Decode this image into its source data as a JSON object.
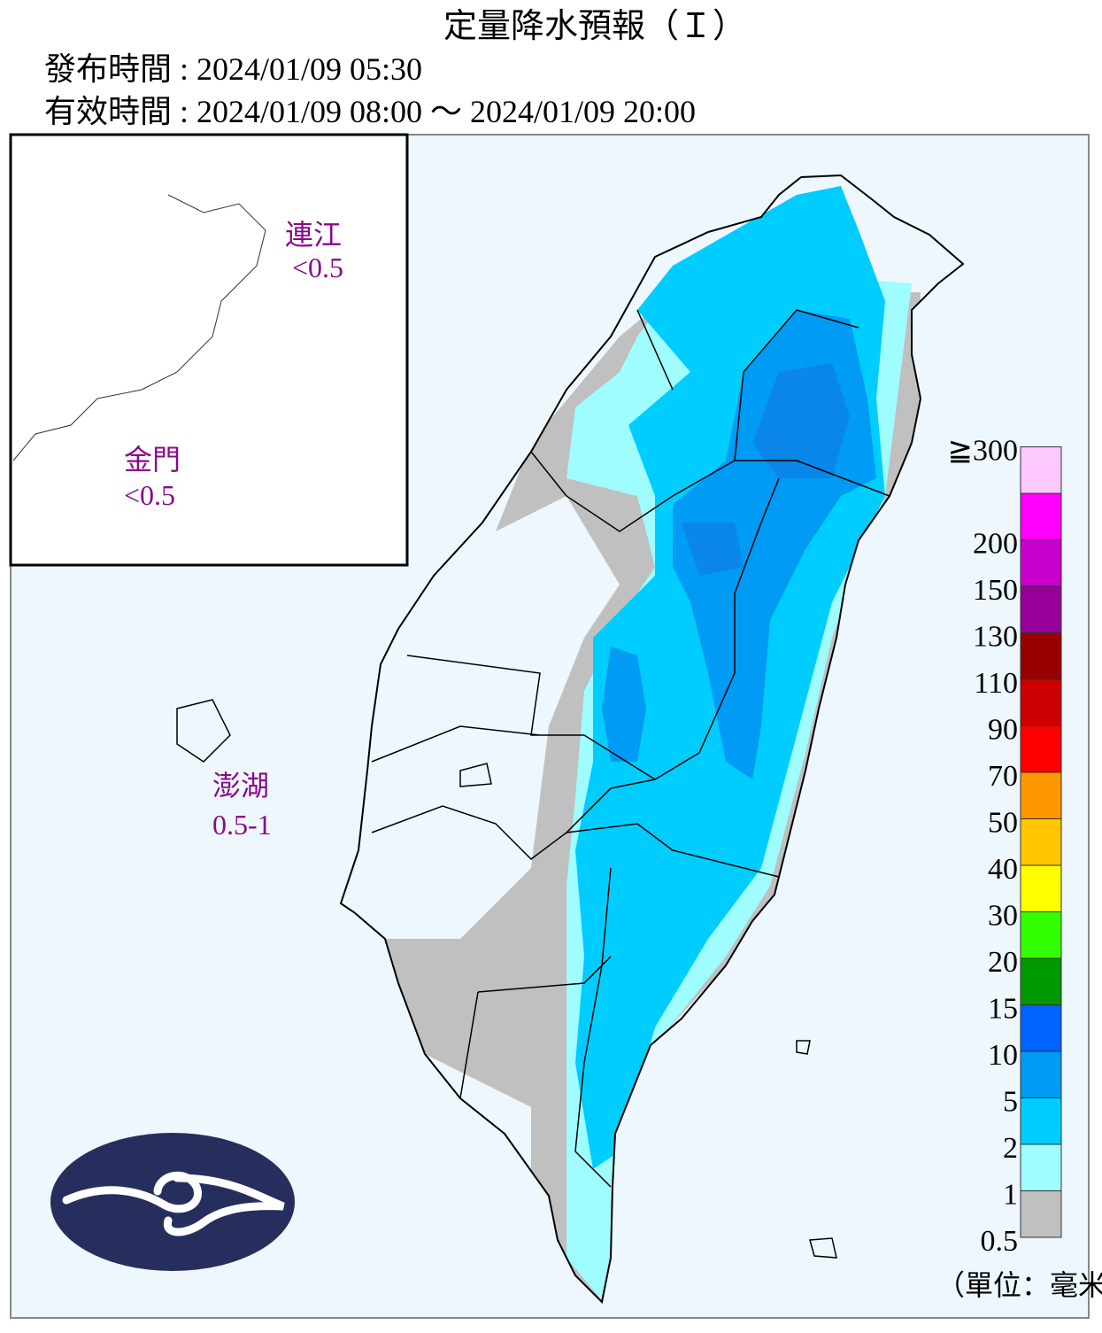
{
  "header": {
    "title": "定量降水預報（Ｉ）",
    "issue_time": "發布時間 : 2024/01/09 05:30",
    "valid_time": "有效時間 : 2024/01/09 08:00 ～ 2024/01/09 20:00"
  },
  "regions": [
    {
      "name": "連江",
      "value": "<0.5"
    },
    {
      "name": "金門",
      "value": "<0.5"
    },
    {
      "name": "澎湖",
      "value": "0.5-1"
    }
  ],
  "legend": {
    "items": [
      {
        "label": "0.5",
        "color": "#c0c0c0"
      },
      {
        "label": "1",
        "color": "#9ffcff"
      },
      {
        "label": "2",
        "color": "#00cdff"
      },
      {
        "label": "5",
        "color": "#009bf5"
      },
      {
        "label": "10",
        "color": "#0063ff"
      },
      {
        "label": "15",
        "color": "#009800"
      },
      {
        "label": "20",
        "color": "#32ff00"
      },
      {
        "label": "30",
        "color": "#ffff00"
      },
      {
        "label": "40",
        "color": "#ffc800"
      },
      {
        "label": "50",
        "color": "#ff9600"
      },
      {
        "label": "70",
        "color": "#ff0000"
      },
      {
        "label": "90",
        "color": "#cc0000"
      },
      {
        "label": "110",
        "color": "#990000"
      },
      {
        "label": "130",
        "color": "#960099"
      },
      {
        "label": "150",
        "color": "#c900cc"
      },
      {
        "label": "200",
        "color": "#ff00ff"
      },
      {
        "label": "≧300",
        "color": "#ffc8ff"
      }
    ],
    "unit": "（單位：毫米）"
  }
}
